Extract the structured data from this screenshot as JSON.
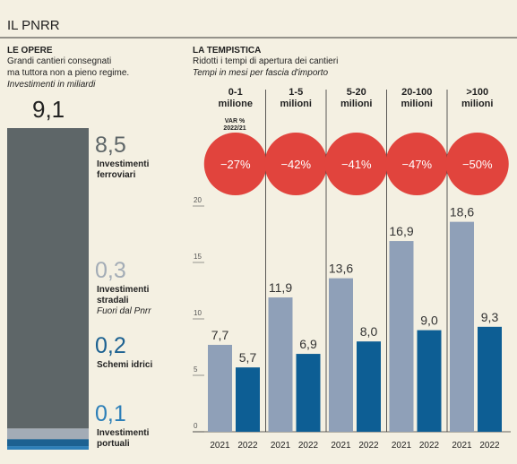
{
  "title": "IL PNRR",
  "chart_data": [
    {
      "type": "stacked_bar",
      "title": "LE OPERE",
      "subtitle": [
        "Grandi cantieri consegnati",
        "ma tuttora non a pieno regime."
      ],
      "note": "Investimenti in miliardi",
      "total": 9.1,
      "total_label": "9,1",
      "categories": [
        "Investimenti ferroviari",
        "Investimenti stradali",
        "Schemi idrici",
        "Investimenti portuali"
      ],
      "category_notes": [
        null,
        "Fuori dal Pnrr",
        null,
        null
      ],
      "values": [
        8.5,
        0.3,
        0.2,
        0.1
      ],
      "value_labels": [
        "8,5",
        "0,3",
        "0,2",
        "0,1"
      ],
      "colors": [
        "#5e6668",
        "#a3acb6",
        "#1c6191",
        "#2d7fb8"
      ],
      "label_colors": [
        "#5e6668",
        "#a3acb6",
        "#1c6191",
        "#2d7fb8"
      ]
    },
    {
      "type": "grouped_bar",
      "title": "LA TEMPISTICA",
      "subtitle": "Ridotti i tempi di apertura dei cantieri",
      "note": "Tempi in mesi per fascia d'importo",
      "categories": [
        "0-1 milione",
        "1-5 milioni",
        "5-20 milioni",
        "20-100 milioni",
        ">100 milioni"
      ],
      "series": [
        {
          "name": "2021",
          "color": "#8fa0b8",
          "values": [
            7.7,
            11.9,
            13.6,
            16.9,
            18.6
          ],
          "value_labels": [
            "7,7",
            "11,9",
            "13,6",
            "16,9",
            "18,6"
          ]
        },
        {
          "name": "2022",
          "color": "#0d5e94",
          "values": [
            5.7,
            6.9,
            8.0,
            9.0,
            9.3
          ],
          "value_labels": [
            "5,7",
            "6,9",
            "8,0",
            "9,0",
            "9,3"
          ]
        }
      ],
      "change": {
        "label": "VAR % 2022/21",
        "color": "#e1443d",
        "values": [
          -27,
          -42,
          -41,
          -47,
          -50
        ],
        "value_labels": [
          "−27%",
          "−42%",
          "−41%",
          "−47%",
          "−50%"
        ]
      },
      "ylim": [
        0,
        20
      ],
      "yticks": [
        0,
        5,
        10,
        15,
        20
      ]
    }
  ]
}
